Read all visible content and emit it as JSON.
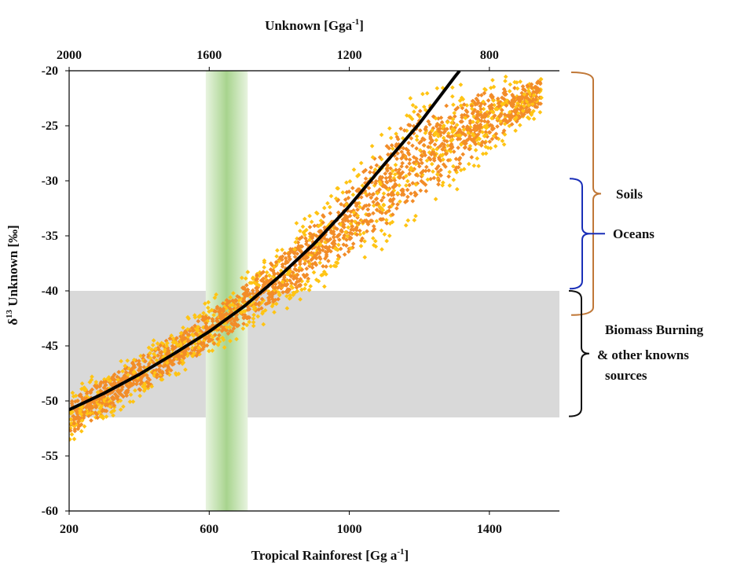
{
  "chart_data": {
    "type": "scatter",
    "title": "",
    "xlabel": "Tropical Rainforest [Gg a",
    "xlabel_sup": "-1",
    "xlabel_suffix": "]",
    "x2label": "Unknown [Gga",
    "x2label_sup": "-1",
    "x2label_suffix": "]",
    "ylabel_prefix": "δ",
    "ylabel_sup": "13",
    "ylabel": " Unknown [‰]",
    "xlim": [
      200,
      1600
    ],
    "ylim": [
      -60,
      -20
    ],
    "x_ticks": [
      "200",
      "600",
      "1000",
      "1400"
    ],
    "x_tick_values": [
      200,
      600,
      1000,
      1400
    ],
    "x2_ticks": [
      "2000",
      "1600",
      "1200",
      "800"
    ],
    "x2_tick_values": [
      2000,
      1600,
      1200,
      800
    ],
    "y_ticks": [
      "-20",
      "-25",
      "-30",
      "-35",
      "-40",
      "-45",
      "-50",
      "-55",
      "-60"
    ],
    "y_tick_values": [
      -20,
      -25,
      -30,
      -35,
      -40,
      -45,
      -50,
      -55,
      -60
    ],
    "fit_curve": {
      "x": [
        200,
        300,
        400,
        500,
        600,
        700,
        800,
        900,
        1000,
        1100,
        1200,
        1300,
        1315
      ],
      "y": [
        -50.8,
        -49.3,
        -47.6,
        -45.7,
        -43.7,
        -41.4,
        -38.7,
        -35.7,
        -32.3,
        -28.5,
        -24.8,
        -20.6,
        -20
      ]
    },
    "scatter_band": {
      "upper": {
        "x": [
          200,
          300,
          400,
          500,
          600,
          700,
          800,
          900,
          1000,
          1100,
          1200,
          1300,
          1400,
          1550
        ],
        "y": [
          -48.5,
          -46.8,
          -44.8,
          -42.8,
          -40.5,
          -38,
          -35.2,
          -31.8,
          -28,
          -24,
          -20,
          -20,
          -20,
          -20
        ]
      },
      "lower": {
        "x": [
          200,
          300,
          400,
          500,
          600,
          700,
          800,
          900,
          1000,
          1100,
          1200,
          1300,
          1400,
          1550
        ],
        "y": [
          -54.5,
          -52.5,
          -50.5,
          -48.5,
          -46.5,
          -44.5,
          -42.5,
          -40.8,
          -39,
          -37,
          -35,
          -32,
          -28.5,
          -24
        ]
      }
    },
    "green_band_x": [
      590,
      710
    ],
    "gray_band_y": [
      -51.5,
      -40
    ],
    "brackets": [
      {
        "label": "Soils",
        "y_range": [
          -20,
          -42.2
        ],
        "color": "#c07838"
      },
      {
        "label": "Oceans",
        "y_range": [
          -29.8,
          -39.8
        ],
        "color": "#1a2fb8"
      },
      {
        "label": "Biomass Burning",
        "label2": "& other knowns",
        "label3": "sources",
        "y_range": [
          -40,
          -51.4
        ],
        "color": "#111111"
      }
    ],
    "colors": {
      "scatter_dark": "#f28c28",
      "scatter_light": "#ffc414",
      "curve": "#000000",
      "green_band": "#b8dca0",
      "gray_band": "#d9d9d9"
    },
    "grid": false,
    "legend": "none"
  }
}
